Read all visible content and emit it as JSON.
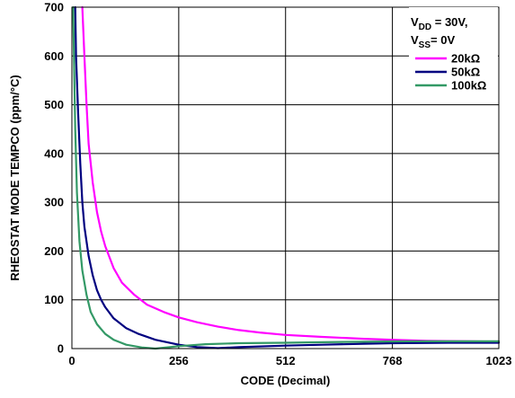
{
  "chart_data": {
    "type": "line",
    "xlabel": "CODE (Decimal)",
    "ylabel": "RHEOSTAT MODE TEMPCO (ppm/°C)",
    "xlim": [
      0,
      1023
    ],
    "ylim": [
      0,
      700
    ],
    "x_ticks": [
      "0",
      "256",
      "512",
      "768",
      "1023"
    ],
    "y_ticks": [
      "0",
      "100",
      "200",
      "300",
      "400",
      "500",
      "600",
      "700"
    ],
    "grid": true,
    "legend_position": "top-right",
    "conditions": {
      "line1": {
        "main": "V",
        "sub": "DD",
        "rest": " = 30V,"
      },
      "line2": {
        "main": "V",
        "sub": "SS",
        "rest": "= 0V"
      }
    },
    "series": [
      {
        "name": "20kΩ",
        "color": "#ff00ff",
        "points": [
          [
            25,
            700
          ],
          [
            30,
            600
          ],
          [
            35,
            500
          ],
          [
            40,
            420
          ],
          [
            50,
            340
          ],
          [
            60,
            280
          ],
          [
            70,
            240
          ],
          [
            80,
            210
          ],
          [
            100,
            165
          ],
          [
            120,
            135
          ],
          [
            150,
            110
          ],
          [
            180,
            90
          ],
          [
            220,
            75
          ],
          [
            256,
            64
          ],
          [
            300,
            54
          ],
          [
            350,
            45
          ],
          [
            400,
            38
          ],
          [
            450,
            33
          ],
          [
            512,
            28
          ],
          [
            600,
            24
          ],
          [
            700,
            20
          ],
          [
            768,
            18
          ],
          [
            850,
            16
          ],
          [
            950,
            15
          ],
          [
            1023,
            14
          ]
        ]
      },
      {
        "name": "50kΩ",
        "color": "#000080",
        "points": [
          [
            8,
            700
          ],
          [
            10,
            600
          ],
          [
            15,
            480
          ],
          [
            20,
            380
          ],
          [
            25,
            300
          ],
          [
            30,
            250
          ],
          [
            40,
            190
          ],
          [
            50,
            150
          ],
          [
            60,
            120
          ],
          [
            70,
            100
          ],
          [
            80,
            85
          ],
          [
            100,
            62
          ],
          [
            130,
            42
          ],
          [
            160,
            30
          ],
          [
            200,
            18
          ],
          [
            256,
            8
          ],
          [
            300,
            3
          ],
          [
            350,
            1
          ],
          [
            400,
            3
          ],
          [
            512,
            6
          ],
          [
            600,
            8
          ],
          [
            700,
            10
          ],
          [
            768,
            11
          ],
          [
            900,
            12
          ],
          [
            1023,
            12
          ]
        ]
      },
      {
        "name": "100kΩ",
        "color": "#339966",
        "points": [
          [
            3,
            700
          ],
          [
            5,
            600
          ],
          [
            8,
            450
          ],
          [
            12,
            320
          ],
          [
            18,
            220
          ],
          [
            25,
            160
          ],
          [
            35,
            110
          ],
          [
            45,
            75
          ],
          [
            60,
            50
          ],
          [
            80,
            30
          ],
          [
            100,
            18
          ],
          [
            130,
            8
          ],
          [
            170,
            2
          ],
          [
            200,
            0
          ],
          [
            256,
            5
          ],
          [
            320,
            9
          ],
          [
            400,
            11
          ],
          [
            512,
            12
          ],
          [
            600,
            13
          ],
          [
            700,
            14
          ],
          [
            800,
            15
          ],
          [
            900,
            15
          ],
          [
            1023,
            15
          ]
        ]
      }
    ]
  }
}
